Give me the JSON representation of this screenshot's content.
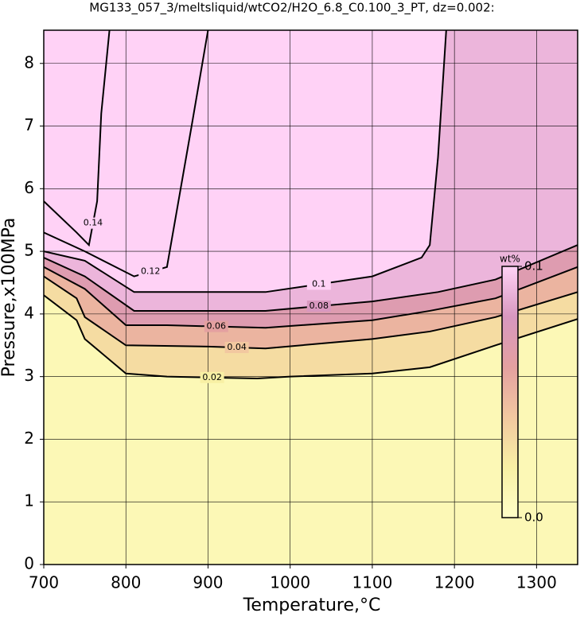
{
  "chart_data": {
    "type": "contour",
    "title": "MG133_057_3/meltsliquid/wtCO2/H2O_6.8_C0.100_3_PT, dz=0.002:",
    "x_label": "Temperature,°C",
    "y_label": "Pressure,x100MPa",
    "xlim": [
      700,
      1350
    ],
    "ylim": [
      0,
      8.53
    ],
    "xticks": [
      700,
      800,
      900,
      1000,
      1100,
      1200,
      1300
    ],
    "yticks": [
      0,
      1,
      2,
      3,
      4,
      5,
      6,
      7,
      8
    ],
    "grid": true,
    "colormap": [
      [
        0,
        "#ffffc8"
      ],
      [
        0.02,
        "#f8f0a4"
      ],
      [
        0.04,
        "#f2c8a0"
      ],
      [
        0.06,
        "#e4a0a0"
      ],
      [
        0.08,
        "#d898c0"
      ],
      [
        0.1,
        "#ffd2f6"
      ]
    ],
    "colorbar": {
      "title": "wt%",
      "range": [
        0,
        0.1
      ],
      "ticks": [
        {
          "value": 0,
          "label": "0.0"
        },
        0.1
      ]
    },
    "contours": [
      {
        "level": 0.14,
        "x": [
          700,
          740,
          755,
          765,
          770,
          780
        ],
        "y": [
          5.8,
          5.3,
          5.1,
          5.8,
          7.2,
          8.53
        ]
      },
      {
        "level": 0.12,
        "x": [
          700,
          750,
          810,
          850,
          860,
          880,
          900
        ],
        "y": [
          5.3,
          5.0,
          4.6,
          4.75,
          5.5,
          7.0,
          8.53
        ]
      },
      {
        "level": 0.1,
        "x": [
          700,
          750,
          810,
          970,
          1100,
          1160,
          1170,
          1180,
          1190
        ],
        "y": [
          5.0,
          4.85,
          4.35,
          4.35,
          4.6,
          4.9,
          5.1,
          6.5,
          8.53
        ]
      },
      {
        "level": 0.08,
        "x": [
          700,
          750,
          810,
          970,
          1100,
          1180,
          1250,
          1350
        ],
        "y": [
          4.9,
          4.6,
          4.05,
          4.05,
          4.2,
          4.35,
          4.55,
          5.1
        ]
      },
      {
        "level": 0.06,
        "x": [
          700,
          750,
          800,
          850,
          970,
          1100,
          1170,
          1250,
          1350
        ],
        "y": [
          4.75,
          4.4,
          3.82,
          3.82,
          3.78,
          3.9,
          4.05,
          4.25,
          4.75
        ]
      },
      {
        "level": 0.04,
        "x": [
          700,
          740,
          750,
          800,
          900,
          970,
          1100,
          1170,
          1250,
          1350
        ],
        "y": [
          4.6,
          4.25,
          3.95,
          3.5,
          3.48,
          3.45,
          3.6,
          3.72,
          3.95,
          4.35
        ]
      },
      {
        "level": 0.02,
        "x": [
          700,
          740,
          750,
          800,
          850,
          960,
          1000,
          1100,
          1170,
          1250,
          1350
        ],
        "y": [
          4.3,
          3.9,
          3.6,
          3.05,
          3.0,
          2.97,
          3.0,
          3.05,
          3.15,
          3.5,
          3.92
        ]
      }
    ]
  }
}
